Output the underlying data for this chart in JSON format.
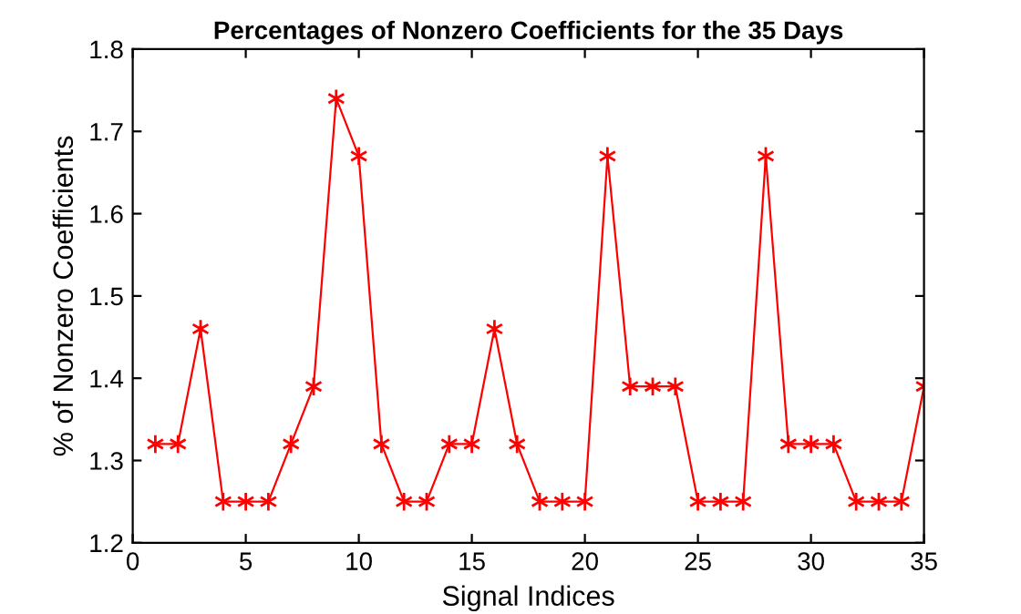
{
  "chart_data": {
    "type": "line",
    "title": "Percentages of Nonzero Coefficients for the 35 Days",
    "xlabel": "Signal Indices",
    "ylabel": "% of Nonzero Coefficients",
    "x": [
      1,
      2,
      3,
      4,
      5,
      6,
      7,
      8,
      9,
      10,
      11,
      12,
      13,
      14,
      15,
      16,
      17,
      18,
      19,
      20,
      21,
      22,
      23,
      24,
      25,
      26,
      27,
      28,
      29,
      30,
      31,
      32,
      33,
      34,
      35
    ],
    "series": [
      {
        "color": "#ff0000",
        "values": [
          1.32,
          1.32,
          1.46,
          1.25,
          1.25,
          1.25,
          1.32,
          1.39,
          1.74,
          1.67,
          1.32,
          1.25,
          1.25,
          1.32,
          1.32,
          1.46,
          1.32,
          1.25,
          1.25,
          1.25,
          1.67,
          1.39,
          1.39,
          1.39,
          1.25,
          1.25,
          1.25,
          1.67,
          1.32,
          1.32,
          1.32,
          1.25,
          1.25,
          1.25,
          1.39
        ]
      }
    ],
    "xlim": [
      0,
      35
    ],
    "xticks": [
      0,
      5,
      10,
      15,
      20,
      25,
      30,
      35
    ],
    "ylim": [
      1.2,
      1.8
    ],
    "yticks": [
      1.2,
      1.3,
      1.4,
      1.5,
      1.6,
      1.7,
      1.8
    ],
    "grid": false,
    "legend": false,
    "marker": "cross",
    "line_style": "solid"
  }
}
